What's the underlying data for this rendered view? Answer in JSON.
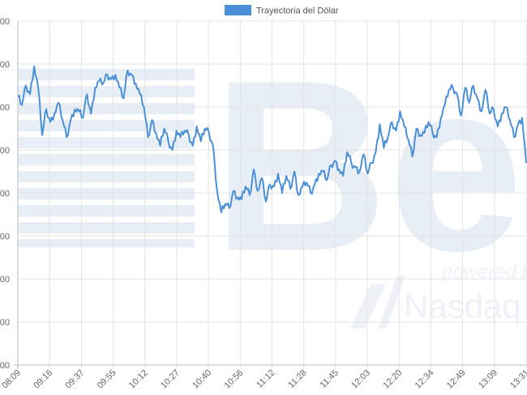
{
  "chart_data": {
    "type": "line",
    "legend": {
      "label": "Trayectoria del Dólar",
      "position": "top",
      "color": "#4a90d9"
    },
    "grid": true,
    "y_tick_labels": [
      "00",
      "00",
      "00",
      "00",
      "00",
      "00",
      "00",
      "00",
      "00"
    ],
    "x_tick_labels": [
      "08:09",
      "09:16",
      "09:37",
      "09:55",
      "10:12",
      "10:27",
      "10:40",
      "10:56",
      "11:12",
      "11:28",
      "11:45",
      "12:03",
      "12:20",
      "12:34",
      "12:49",
      "13:09",
      "13:31"
    ],
    "ylim": [
      0,
      8
    ],
    "series": [
      {
        "name": "Trayectoria del Dólar",
        "color": "#4a90d9",
        "values": [
          6.25,
          6.05,
          6.5,
          6.3,
          6.95,
          6.45,
          5.35,
          5.95,
          5.65,
          5.85,
          6.1,
          5.7,
          5.3,
          5.7,
          5.95,
          5.9,
          5.75,
          6.3,
          5.85,
          6.45,
          6.6,
          6.55,
          6.75,
          6.65,
          6.75,
          6.45,
          6.2,
          6.85,
          6.75,
          6.55,
          6.3,
          6.0,
          5.3,
          5.7,
          5.4,
          5.1,
          5.5,
          5.2,
          5.0,
          5.45,
          5.3,
          5.45,
          5.35,
          5.1,
          5.55,
          5.2,
          5.5,
          5.4,
          5.1,
          4.05,
          3.55,
          3.75,
          3.65,
          4.05,
          3.9,
          3.85,
          4.15,
          3.95,
          4.55,
          4.05,
          4.35,
          3.8,
          4.2,
          4.15,
          4.45,
          4.0,
          4.4,
          4.1,
          4.5,
          3.95,
          4.15,
          4.25,
          4.0,
          4.2,
          4.45,
          4.5,
          4.3,
          4.65,
          4.75,
          4.55,
          4.4,
          4.95,
          4.7,
          4.6,
          4.5,
          4.9,
          4.45,
          4.7,
          4.95,
          5.6,
          5.05,
          5.3,
          5.65,
          5.45,
          5.9,
          5.55,
          5.25,
          4.85,
          5.5,
          5.35,
          5.4,
          5.65,
          5.4,
          5.3,
          5.75,
          6.05,
          6.4,
          6.45,
          6.3,
          5.8,
          6.45,
          6.1,
          6.5,
          6.2,
          5.9,
          6.4,
          5.85,
          5.95,
          5.55,
          5.85,
          6.0,
          5.7,
          5.3,
          5.6,
          5.75,
          4.7
        ]
      }
    ]
  },
  "watermark": {
    "brand": "Bee",
    "tagline": "powered by",
    "partner": "Nasdaq"
  }
}
